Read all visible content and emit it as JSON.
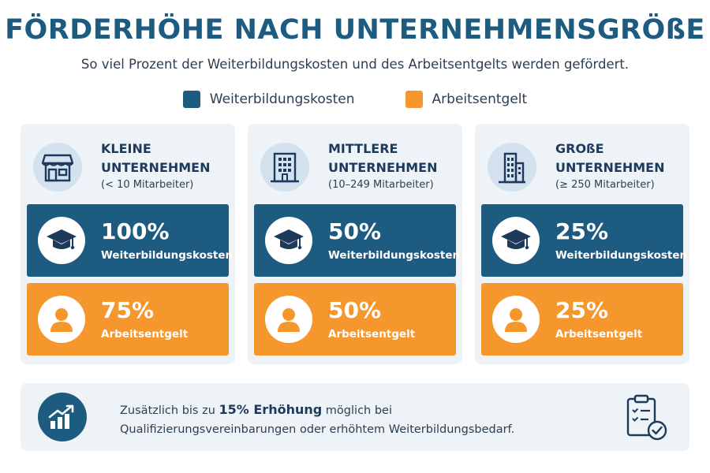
{
  "header": {
    "title": "FÖRDERHÖHE NACH UNTERNEHMENSGRÖßE",
    "subtitle": "So viel Prozent der Weiterbildungskosten und des Arbeitsentgelts werden gefördert."
  },
  "legend": [
    {
      "label": "Weiterbildungskosten",
      "color": "#1e5b80"
    },
    {
      "label": "Arbeitsentgelt",
      "color": "#f6972e"
    }
  ],
  "cards": [
    {
      "icon": "store-icon",
      "name": "KLEINE UNTERNEHMEN",
      "employees": "(< 10 Mitarbeiter)",
      "training_costs": {
        "value": "100%",
        "label": "Weiterbildungskosten"
      },
      "wages": {
        "value": "75%",
        "label": "Arbeitsentgelt"
      }
    },
    {
      "icon": "office-building-icon",
      "name": "MITTLERE UNTERNEHMEN",
      "employees": "(10–249 Mitarbeiter)",
      "training_costs": {
        "value": "50%",
        "label": "Weiterbildungskosten"
      },
      "wages": {
        "value": "50%",
        "label": "Arbeitsentgelt"
      }
    },
    {
      "icon": "skyscraper-icon",
      "name": "GROßE UNTERNEHMEN",
      "employees": "(≥ 250 Mitarbeiter)",
      "training_costs": {
        "value": "25%",
        "label": "Weiterbildungskosten"
      },
      "wages": {
        "value": "25%",
        "label": "Arbeitsentgelt"
      }
    }
  ],
  "footer": {
    "line1_prefix": "Zusätzlich bis zu ",
    "line1_bold": "15% Erhöhung",
    "line1_suffix": " möglich bei",
    "line2": "Qualifizierungsvereinbarungen oder erhöhtem Weiterbildungsbedarf."
  },
  "colors": {
    "blue": "#1e5b80",
    "orange": "#f6972e",
    "card_bg": "#eef3f8"
  }
}
